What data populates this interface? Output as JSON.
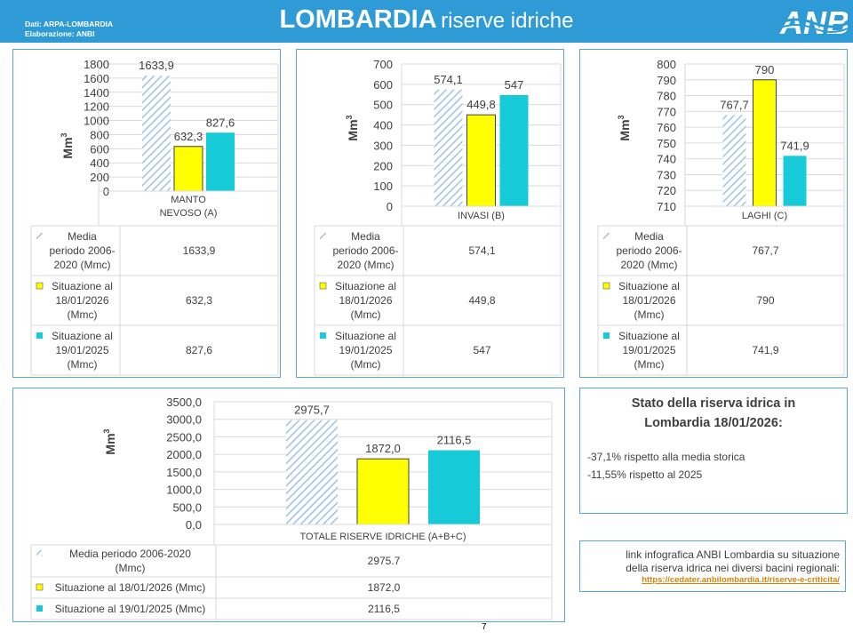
{
  "header": {
    "source_line1": "Dati: ARPA-LOMBARDIA",
    "source_line2": "Elaborazione: ANBI",
    "title_bold": "LOMBARDIA",
    "title_rest": "riserve idriche",
    "logo_text": "ANBI"
  },
  "colors": {
    "header_bg": "#2e9bd6",
    "media_hatch": "#9dc3e6",
    "situazione_2026": "#ffff00",
    "situazione_2025": "#17cad7",
    "border": "#59a7d6"
  },
  "chart_data": [
    {
      "type": "bar",
      "ylabel": "Mm3",
      "ylim": [
        0,
        1800
      ],
      "yticks": [
        "1800",
        "1600",
        "1400",
        "1200",
        "1000",
        "800",
        "600",
        "400",
        "200",
        "0"
      ],
      "category_lines": [
        "MANTO",
        "NEVOSO (A)"
      ],
      "series": [
        {
          "label_lines": [
            "Media",
            "periodo 2006-",
            "2020 (Mmc)"
          ],
          "value": 1633.9,
          "display": "1633,9",
          "table": "1633,9"
        },
        {
          "label_lines": [
            "Situazione al",
            "18/01/2026",
            "(Mmc)"
          ],
          "value": 632.3,
          "display": "632,3",
          "table": "632,3"
        },
        {
          "label_lines": [
            "Situazione al",
            "19/01/2025",
            "(Mmc)"
          ],
          "value": 827.6,
          "display": "827,6",
          "table": "827,6"
        }
      ]
    },
    {
      "type": "bar",
      "ylabel": "Mm3",
      "ylim": [
        0,
        700
      ],
      "yticks": [
        "700",
        "600",
        "500",
        "400",
        "300",
        "200",
        "100",
        "0"
      ],
      "category_lines": [
        "INVASI (B)"
      ],
      "series": [
        {
          "label_lines": [
            "Media",
            "periodo 2006-",
            "2020 (Mmc)"
          ],
          "value": 574.1,
          "display": "574,1",
          "table": "574,1"
        },
        {
          "label_lines": [
            "Situazione al",
            "18/01/2026",
            "(Mmc)"
          ],
          "value": 449.8,
          "display": "449,8",
          "table": "449,8"
        },
        {
          "label_lines": [
            "Situazione al",
            "19/01/2025",
            "(Mmc)"
          ],
          "value": 547,
          "display": "547",
          "table": "547"
        }
      ]
    },
    {
      "type": "bar",
      "ylabel": "Mm3",
      "ylim": [
        710,
        800
      ],
      "yticks": [
        "800",
        "790",
        "780",
        "770",
        "760",
        "750",
        "740",
        "730",
        "720",
        "710"
      ],
      "category_lines": [
        "LAGHI (C)"
      ],
      "series": [
        {
          "label_lines": [
            "Media",
            "periodo 2006-",
            "2020 (Mmc)"
          ],
          "value": 767.7,
          "display": "767,7",
          "table": "767,7"
        },
        {
          "label_lines": [
            "Situazione al",
            "18/01/2026",
            "(Mmc)"
          ],
          "value": 790,
          "display": "790",
          "table": "790"
        },
        {
          "label_lines": [
            "Situazione al",
            "19/01/2025",
            "(Mmc)"
          ],
          "value": 741.9,
          "display": "741,9",
          "table": "741,9"
        }
      ]
    },
    {
      "type": "bar",
      "ylabel": "Mm3",
      "ylim": [
        0,
        3500
      ],
      "yticks": [
        "3500,0",
        "3000,0",
        "2500,0",
        "2000,0",
        "1500,0",
        "1000,0",
        "500,0",
        "0,0"
      ],
      "category_lines": [
        "TOTALE RISERVE IDRICHE (A+B+C)"
      ],
      "series": [
        {
          "label_lines": [
            "Media periodo 2006-2020",
            "(Mmc)"
          ],
          "value": 2975.7,
          "display": "2975,7",
          "table": "2975.7"
        },
        {
          "label_lines": [
            "Situazione al 18/01/2026 (Mmc)"
          ],
          "value": 1872.0,
          "display": "1872,0",
          "table": "1872,0"
        },
        {
          "label_lines": [
            "Situazione al 19/01/2025 (Mmc)"
          ],
          "value": 2116.5,
          "display": "2116,5",
          "table": "2116,5"
        }
      ]
    }
  ],
  "stato": {
    "title_line1": "Stato della riserva idrica in",
    "title_line2": "Lombardia 18/01/2026:",
    "line1": "-37,1% rispetto alla media storica",
    "line2": "-11,55% rispetto al 2025"
  },
  "link": {
    "text_line1": "link infografica ANBI Lombardia su situazione",
    "text_line2": "della riserva idrica nei diversi bacini regionali:",
    "url": "https://cedater.anbilombardia.it/riserve-e-criticita/"
  },
  "page_number": "7"
}
